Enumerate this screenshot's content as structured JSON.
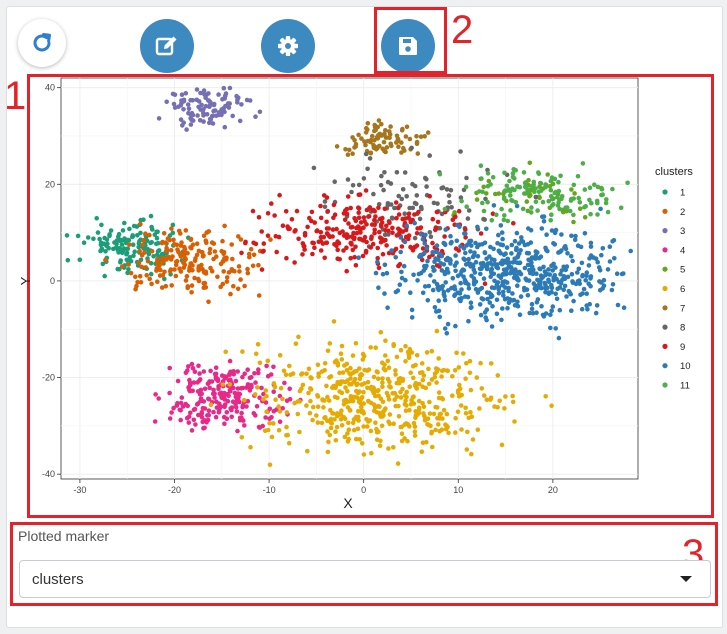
{
  "toolbar": {
    "refresh_icon": "refresh-icon",
    "edit_icon": "edit-icon",
    "settings_icon": "gear-icon",
    "save_icon": "save-icon",
    "accent_color": "#3d8ac1"
  },
  "callouts": [
    "1",
    "2",
    "3"
  ],
  "marker": {
    "label": "Plotted marker",
    "selected": "clusters"
  },
  "chart_data": {
    "type": "scatter",
    "title": "",
    "xlabel": "X",
    "ylabel": "Y",
    "xlim": [
      -32,
      29
    ],
    "ylim": [
      -41,
      42
    ],
    "xticks": [
      -30,
      -20,
      -10,
      0,
      10,
      20
    ],
    "yticks": [
      -40,
      -20,
      0,
      20,
      40
    ],
    "grid": true,
    "legend": {
      "title": "clusters",
      "position": "right"
    },
    "series": [
      {
        "name": "1",
        "color": "#1b9e77",
        "clusters": [
          {
            "cx": -24.5,
            "cy": 7,
            "sx": 2.6,
            "sy": 2.6,
            "n": 150
          }
        ]
      },
      {
        "name": "2",
        "color": "#d95f02",
        "clusters": [
          {
            "cx": -18.5,
            "cy": 3.5,
            "sx": 3.5,
            "sy": 3.2,
            "n": 200
          }
        ]
      },
      {
        "name": "3",
        "color": "#7570b3",
        "clusters": [
          {
            "cx": -16.5,
            "cy": 36,
            "sx": 2.2,
            "sy": 2,
            "n": 100
          }
        ]
      },
      {
        "name": "4",
        "color": "#e7298a",
        "clusters": [
          {
            "cx": -14.5,
            "cy": -24,
            "sx": 3,
            "sy": 3.8,
            "n": 230
          }
        ]
      },
      {
        "name": "5",
        "color": "#66a61e",
        "clusters": [
          {
            "cx": 17,
            "cy": 18,
            "sx": 4.2,
            "sy": 2.2,
            "n": 50
          }
        ]
      },
      {
        "name": "6",
        "color": "#e6ab02",
        "clusters": [
          {
            "cx": 1.5,
            "cy": -24,
            "sx": 6.5,
            "sy": 5.5,
            "n": 500
          }
        ]
      },
      {
        "name": "7",
        "color": "#a6761d",
        "clusters": [
          {
            "cx": 2,
            "cy": 29.5,
            "sx": 2.2,
            "sy": 1.8,
            "n": 85
          }
        ]
      },
      {
        "name": "8",
        "color": "#666666",
        "clusters": [
          {
            "cx": 5,
            "cy": 17,
            "sx": 5,
            "sy": 4.5,
            "n": 100
          }
        ]
      },
      {
        "name": "9",
        "color": "#d7191c",
        "clusters": [
          {
            "cx": 0,
            "cy": 10,
            "sx": 5.5,
            "sy": 3.5,
            "n": 280
          }
        ]
      },
      {
        "name": "10",
        "color": "#2c7bb6",
        "clusters": [
          {
            "cx": 15.5,
            "cy": 2,
            "sx": 6,
            "sy": 5,
            "n": 560
          }
        ]
      },
      {
        "name": "11",
        "color": "#4daf4a",
        "clusters": [
          {
            "cx": 18.5,
            "cy": 18,
            "sx": 4,
            "sy": 2.5,
            "n": 130
          }
        ]
      }
    ]
  }
}
